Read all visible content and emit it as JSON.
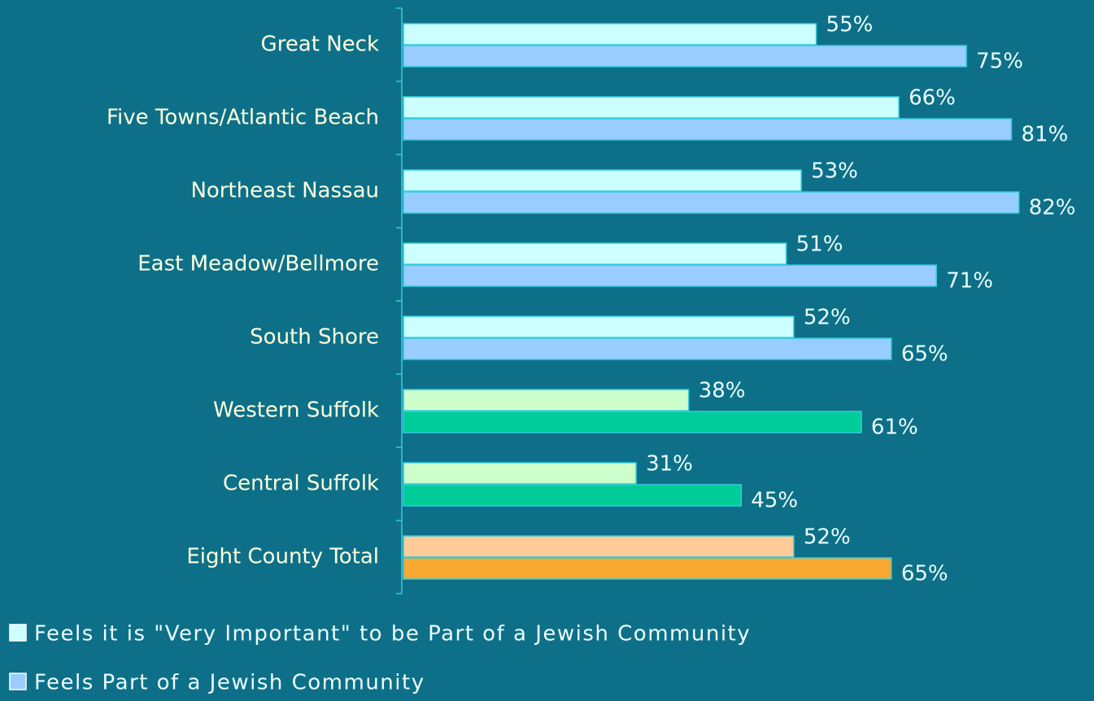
{
  "chart_data": {
    "type": "hbar",
    "categories": [
      "Great Neck",
      "Five Towns/Atlantic Beach",
      "Northeast Nassau",
      "East Meadow/Bellmore",
      "South Shore",
      "Western Suffolk",
      "Central Suffolk",
      "Eight County Total"
    ],
    "series": [
      {
        "name": "Feels it is \"Very Important\" to be Part of a Jewish Community",
        "color": "#ccffff",
        "colors": [
          "#ccffff",
          "#ccffff",
          "#ccffff",
          "#ccffff",
          "#ccffff",
          "#ccffcc",
          "#ccffcc",
          "#ffcc99"
        ],
        "values": [
          55,
          66,
          53,
          51,
          52,
          38,
          31,
          52
        ],
        "value_labels": [
          "55%",
          "66%",
          "53%",
          "51%",
          "52%",
          "38%",
          "31%",
          "52%"
        ]
      },
      {
        "name": "Feels Part of a Jewish Community",
        "color": "#99ccff",
        "colors": [
          "#99ccff",
          "#99ccff",
          "#99ccff",
          "#99ccff",
          "#99ccff",
          "#00cc99",
          "#00cc99",
          "#f8a830"
        ],
        "values": [
          75,
          81,
          82,
          71,
          65,
          61,
          45,
          65
        ],
        "value_labels": [
          "75%",
          "81%",
          "82%",
          "71%",
          "65%",
          "61%",
          "45%",
          "65%"
        ]
      }
    ],
    "xlim": [
      0,
      92
    ]
  }
}
